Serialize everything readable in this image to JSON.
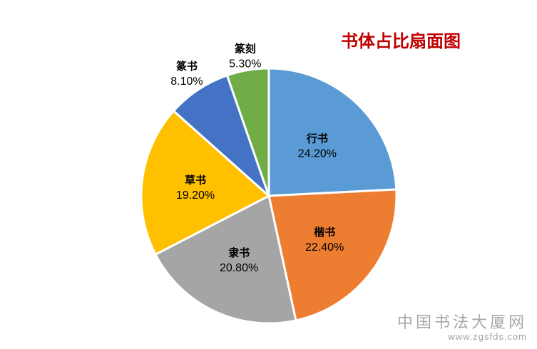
{
  "chart_data": {
    "type": "pie",
    "title": "书体占比扇面图",
    "slices": [
      {
        "label": "行书",
        "value": 24.2,
        "value_text": "24.20%",
        "color": "#5b9bd5"
      },
      {
        "label": "楷书",
        "value": 22.4,
        "value_text": "22.40%",
        "color": "#ed7d31"
      },
      {
        "label": "隶书",
        "value": 20.8,
        "value_text": "20.80%",
        "color": "#a5a5a5"
      },
      {
        "label": "草书",
        "value": 19.2,
        "value_text": "19.20%",
        "color": "#ffc000"
      },
      {
        "label": "篆书",
        "value": 8.1,
        "value_text": "8.10%",
        "color": "#4472c4"
      },
      {
        "label": "篆刻",
        "value": 5.3,
        "value_text": "5.30%",
        "color": "#70ad47"
      }
    ],
    "start_angle": "12 o'clock",
    "direction": "clockwise",
    "legend": "none",
    "data_labels": "category name and percentage"
  },
  "watermark": {
    "site_name": "中国书法大厦网",
    "url": "www.zgsfds.com"
  }
}
